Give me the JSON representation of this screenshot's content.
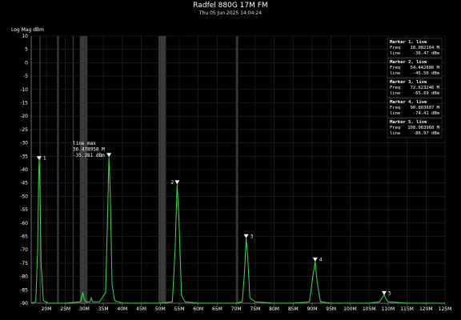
{
  "chart_data": {
    "type": "line",
    "title": "Radfel 880G 17M FM",
    "subtitle": "Thu 05 Jun 2025 14:04:24",
    "ylabel": "Log Mag dBm",
    "xlim": [
      16,
      125
    ],
    "ylim": [
      -90,
      10
    ],
    "x_ticks": [
      {
        "v": 20,
        "label": "20M"
      },
      {
        "v": 25,
        "label": "25M"
      },
      {
        "v": 30,
        "label": "30M"
      },
      {
        "v": 35,
        "label": "35M"
      },
      {
        "v": 40,
        "label": "40M"
      },
      {
        "v": 45,
        "label": "45M"
      },
      {
        "v": 50,
        "label": "50M"
      },
      {
        "v": 55,
        "label": "55M"
      },
      {
        "v": 60,
        "label": "60M"
      },
      {
        "v": 65,
        "label": "65M"
      },
      {
        "v": 70,
        "label": "70M"
      },
      {
        "v": 75,
        "label": "75M"
      },
      {
        "v": 80,
        "label": "80M"
      },
      {
        "v": 85,
        "label": "85M"
      },
      {
        "v": 90,
        "label": "90M"
      },
      {
        "v": 95,
        "label": "95M"
      },
      {
        "v": 100,
        "label": "100M"
      },
      {
        "v": 105,
        "label": "105M"
      },
      {
        "v": 110,
        "label": "110M"
      },
      {
        "v": 115,
        "label": "115M"
      },
      {
        "v": 120,
        "label": "120M"
      },
      {
        "v": 125,
        "label": "125M"
      }
    ],
    "y_ticks": [
      10,
      5,
      0,
      -5,
      -10,
      -15,
      -20,
      -25,
      -30,
      -35,
      -40,
      -45,
      -50,
      -55,
      -60,
      -65,
      -70,
      -75,
      -80,
      -85,
      -90
    ],
    "grid": true,
    "shaded_bands": [
      [
        18.2,
        18.5
      ],
      [
        22.8,
        23.3
      ],
      [
        26.9,
        27.2
      ],
      [
        28.8,
        30.8
      ],
      [
        49.5,
        51.5
      ],
      [
        69.9,
        70.5
      ]
    ],
    "series": [
      {
        "color": "#3ddc4a",
        "x": [
          16.0,
          17.2,
          17.7,
          17.95,
          18.08,
          18.25,
          18.6,
          19.2,
          20.5,
          25.0,
          29.0,
          29.6,
          30.0,
          30.4,
          31.5,
          31.8,
          32.2,
          34.0,
          35.6,
          36.15,
          36.48,
          36.8,
          37.3,
          38.0,
          39.0,
          40.0,
          45.0,
          50.0,
          53.2,
          53.9,
          54.44,
          54.9,
          55.6,
          56.5,
          60.0,
          65.0,
          70.0,
          71.6,
          72.2,
          72.62,
          73.0,
          73.6,
          75.0,
          80.0,
          85.0,
          89.3,
          90.2,
          90.8,
          91.3,
          92.2,
          95.0,
          100.0,
          105.0,
          107.8,
          108.4,
          108.98,
          109.5,
          110.0,
          115.0,
          120.0,
          125.0
        ],
        "y": [
          -90,
          -89.5,
          -70,
          -45,
          -36.5,
          -42,
          -75,
          -89,
          -90,
          -90,
          -89.5,
          -86,
          -88.5,
          -89.5,
          -89.5,
          -88,
          -89.5,
          -89.5,
          -86,
          -55,
          -35.3,
          -48,
          -83,
          -89,
          -89.5,
          -90,
          -90,
          -90,
          -89.5,
          -70,
          -45.5,
          -58,
          -87,
          -89.5,
          -90,
          -90,
          -90,
          -89.5,
          -78,
          -65.7,
          -72,
          -88,
          -89.5,
          -90,
          -90,
          -89.5,
          -80,
          -74.4,
          -82,
          -89.5,
          -90,
          -90,
          -90,
          -89.5,
          -88,
          -86.9,
          -88.5,
          -89.5,
          -90,
          -90,
          -90
        ]
      }
    ],
    "markers": [
      {
        "label": "1",
        "freq": 18.082164,
        "value": -36.47
      },
      {
        "label": "2",
        "freq": 54.442886,
        "value": -45.5
      },
      {
        "label": "3",
        "freq": 72.623246,
        "value": -65.69
      },
      {
        "label": "4",
        "freq": 90.803607,
        "value": -74.41
      },
      {
        "label": "5",
        "freq": 108.983968,
        "value": -86.97
      }
    ],
    "annotation": {
      "lines": [
        "line max",
        "36.478958 M",
        "-35.281 dBm"
      ],
      "freq": 36.478958,
      "value": -35.281
    },
    "marker_panel": [
      {
        "title": "Marker 1, live",
        "freq_label": "Freq",
        "freq": "18.082164 M",
        "line_label": "line",
        "line": "-36.47 dBm"
      },
      {
        "title": "Marker 2, live",
        "freq_label": "Freq",
        "freq": "54.442886 M",
        "line_label": "line",
        "line": "-45.50 dBm"
      },
      {
        "title": "Marker 3, live",
        "freq_label": "Freq",
        "freq": "72.623246 M",
        "line_label": "line",
        "line": "-65.69 dBm"
      },
      {
        "title": "Marker 4, live",
        "freq_label": "Freq",
        "freq": "90.803607 M",
        "line_label": "line",
        "line": "-74.41 dBm"
      },
      {
        "title": "Marker 5, live",
        "freq_label": "Freq",
        "freq": "108.983968 M",
        "line_label": "line",
        "line": "-86.97 dBm"
      }
    ],
    "colors": {
      "background": "#000000",
      "grid": "#2a2a2a",
      "trace": "#3ddc4a",
      "band": "#3a3a3a"
    }
  }
}
